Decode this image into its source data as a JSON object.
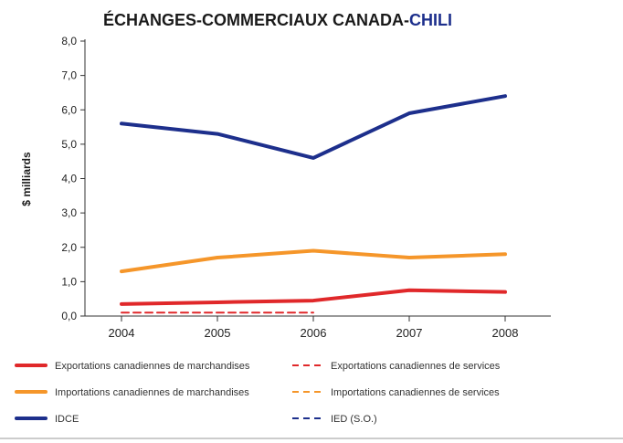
{
  "chart_data": {
    "type": "line",
    "title_main": "ÉCHANGES-COMMERCIAUX CANADA-",
    "title_highlight": "CHILI",
    "ylabel": "$ milliards",
    "xlabel": "",
    "x": [
      "2004",
      "2005",
      "2006",
      "2007",
      "2008"
    ],
    "ylim": [
      0,
      8
    ],
    "yticks": [
      "0,0",
      "1,0",
      "2,0",
      "3,0",
      "4,0",
      "5,0",
      "6,0",
      "7,0",
      "8,0"
    ],
    "grid": false,
    "legend_position": "bottom",
    "series": [
      {
        "name": "Exportations canadiennes de marchandises",
        "values": [
          0.35,
          0.4,
          0.45,
          0.75,
          0.7
        ],
        "color": "#e0282a",
        "dash": "solid"
      },
      {
        "name": "Exportations canadiennes de services",
        "values": [
          0.1,
          0.1,
          0.1,
          null,
          null
        ],
        "color": "#e0282a",
        "dash": "dashed"
      },
      {
        "name": "Importations canadiennes de marchandises",
        "values": [
          1.3,
          1.7,
          1.9,
          1.7,
          1.8
        ],
        "color": "#f5962a",
        "dash": "solid"
      },
      {
        "name": "Importations canadiennes de services",
        "values": [
          null,
          null,
          null,
          null,
          null
        ],
        "color": "#f5962a",
        "dash": "dashed"
      },
      {
        "name": "IDCE",
        "values": [
          5.6,
          5.3,
          4.6,
          5.9,
          6.4
        ],
        "color": "#1d2f8c",
        "dash": "solid"
      },
      {
        "name": "IED (S.O.)",
        "values": [
          null,
          null,
          null,
          null,
          null
        ],
        "color": "#1d2f8c",
        "dash": "dashed"
      }
    ]
  },
  "colors": {
    "title": "#1a1a1a",
    "title_highlight": "#1d2f8c",
    "axis": "#333333"
  }
}
